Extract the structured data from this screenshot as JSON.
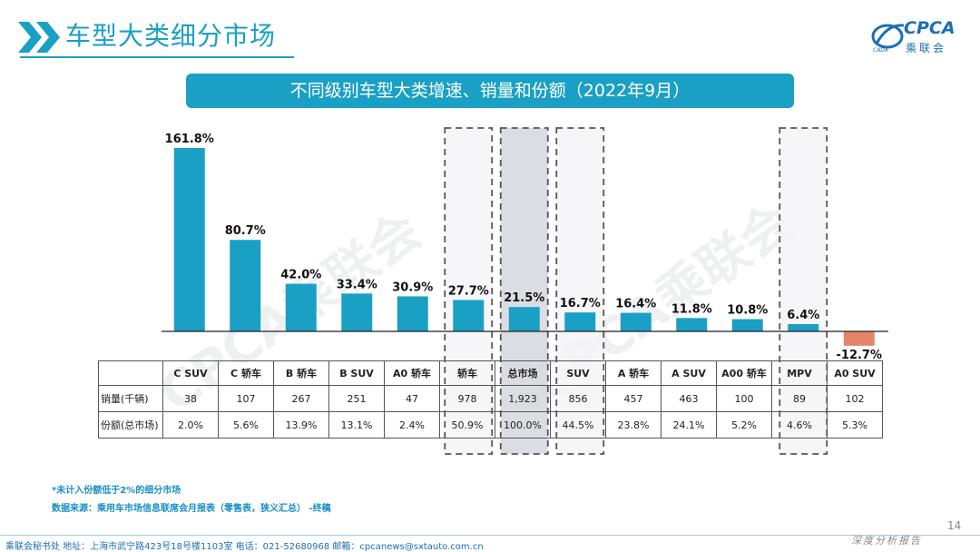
{
  "header": {
    "title": "车型大类细分市场",
    "logo_text": "CPCA",
    "logo_cn": "乘联会",
    "logo_small": "CADA"
  },
  "banner": {
    "text": "不同级别车型大类增速、销量和份额（2022年9月）"
  },
  "watermark": {
    "text": "CPCA乘联会"
  },
  "chart_data": {
    "type": "bar",
    "title": "不同级别车型大类增速、销量和份额（2022年9月）",
    "categories": [
      "C SUV",
      "C 轿车",
      "B 轿车",
      "B SUV",
      "A0 轿车",
      "轿车",
      "总市场",
      "SUV",
      "A 轿车",
      "A SUV",
      "A00 轿车",
      "MPV",
      "A0 SUV"
    ],
    "values": [
      161.8,
      80.7,
      42.0,
      33.4,
      30.9,
      27.7,
      21.5,
      16.7,
      16.4,
      11.8,
      10.8,
      6.4,
      -12.7
    ],
    "value_labels": [
      "161.8%",
      "80.7%",
      "42.0%",
      "33.4%",
      "30.9%",
      "27.7%",
      "21.5%",
      "16.7%",
      "16.4%",
      "11.8%",
      "10.8%",
      "6.4%",
      "-12.7%"
    ],
    "unit": "%",
    "ylim": [
      -20,
      170
    ],
    "positive_color": "#1aa0c4",
    "negative_color": "#e4856a",
    "highlighted": [
      "轿车",
      "总市场",
      "SUV",
      "MPV"
    ],
    "shaded": [
      "总市场"
    ],
    "table": {
      "header_label": "",
      "rows": [
        {
          "label": "销量(千辆)",
          "values": [
            "38",
            "107",
            "267",
            "251",
            "47",
            "978",
            "1,923",
            "856",
            "457",
            "463",
            "100",
            "89",
            "102"
          ]
        },
        {
          "label": "份额(总市场)",
          "values": [
            "2.0%",
            "5.6%",
            "13.9%",
            "13.1%",
            "2.4%",
            "50.9%",
            "100.0%",
            "44.5%",
            "23.8%",
            "24.1%",
            "5.2%",
            "4.6%",
            "5.3%"
          ]
        }
      ]
    }
  },
  "footnotes": {
    "note1": "*未计入份额低于2%的细分市场",
    "note2": "数据来源：乘用车市场信息联席会月报表（零售表，狭义汇总） -终稿"
  },
  "footer": {
    "text": "乘联会秘书处   地址：上海市武宁路423号18号楼1103室  电话：021-52680968   邮箱：cpcanews@sxtauto.com.cn",
    "tag": "深度分析报告",
    "page_number": "14"
  }
}
